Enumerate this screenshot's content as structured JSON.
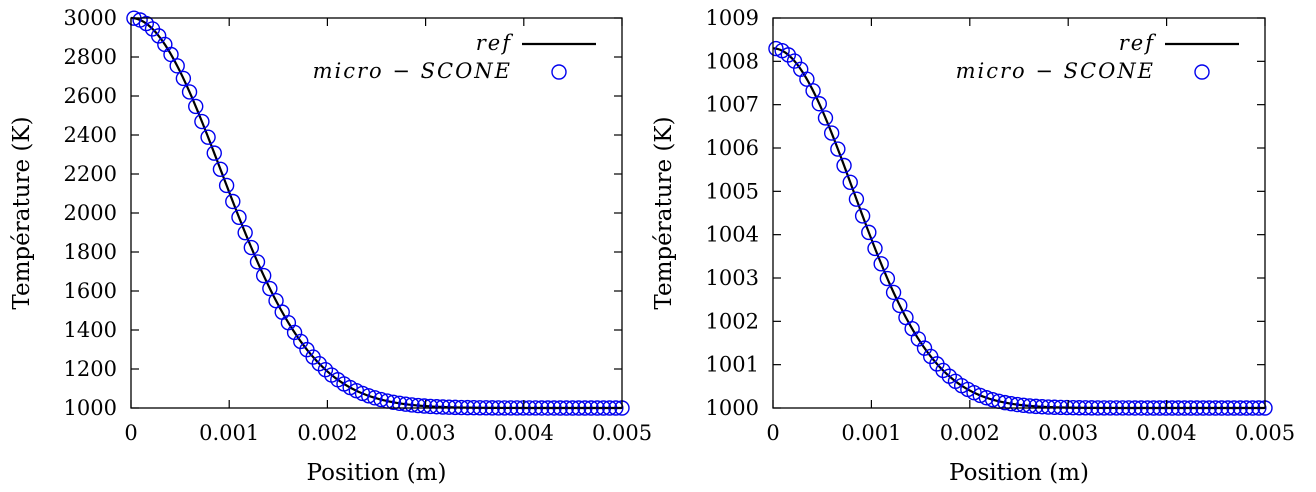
{
  "chart_data": [
    {
      "type": "line",
      "xlabel": "Position (m)",
      "ylabel": "Température (K)",
      "xlim": [
        0,
        0.005
      ],
      "ylim": [
        1000,
        3000
      ],
      "xticks": [
        "0",
        "0.001",
        "0.002",
        "0.003",
        "0.004",
        "0.005"
      ],
      "yticks": [
        "1000",
        "1200",
        "1400",
        "1600",
        "1800",
        "2000",
        "2200",
        "2400",
        "2600",
        "2800",
        "3000"
      ],
      "legend_position": "top-right",
      "series": [
        {
          "name": "ref",
          "style": "line",
          "color": "#000000",
          "x_range": [
            0,
            0.005
          ],
          "values": {
            "T_max": 3000,
            "T_base": 1000,
            "width": 0.0013
          }
        },
        {
          "name": "micro − SCONE",
          "style": "circles",
          "color": "#0000ee",
          "x_range": [
            3e-05,
            0.005
          ],
          "points": 80
        }
      ]
    },
    {
      "type": "line",
      "xlabel": "Position (m)",
      "ylabel": "Température (K)",
      "xlim": [
        0,
        0.005
      ],
      "ylim": [
        1000,
        1009
      ],
      "xticks": [
        "0",
        "0.001",
        "0.002",
        "0.003",
        "0.004",
        "0.005"
      ],
      "yticks": [
        "1000",
        "1001",
        "1002",
        "1003",
        "1004",
        "1005",
        "1006",
        "1007",
        "1008",
        "1009"
      ],
      "legend_position": "top-right",
      "series": [
        {
          "name": "ref",
          "style": "line",
          "color": "#000000",
          "x_range": [
            0,
            0.005
          ],
          "values": {
            "T_max": 1008.3,
            "T_base": 1000,
            "width": 0.00115
          }
        },
        {
          "name": "micro − SCONE",
          "style": "circles",
          "color": "#0000ee",
          "x_range": [
            3e-05,
            0.005
          ],
          "points": 80
        }
      ]
    }
  ]
}
